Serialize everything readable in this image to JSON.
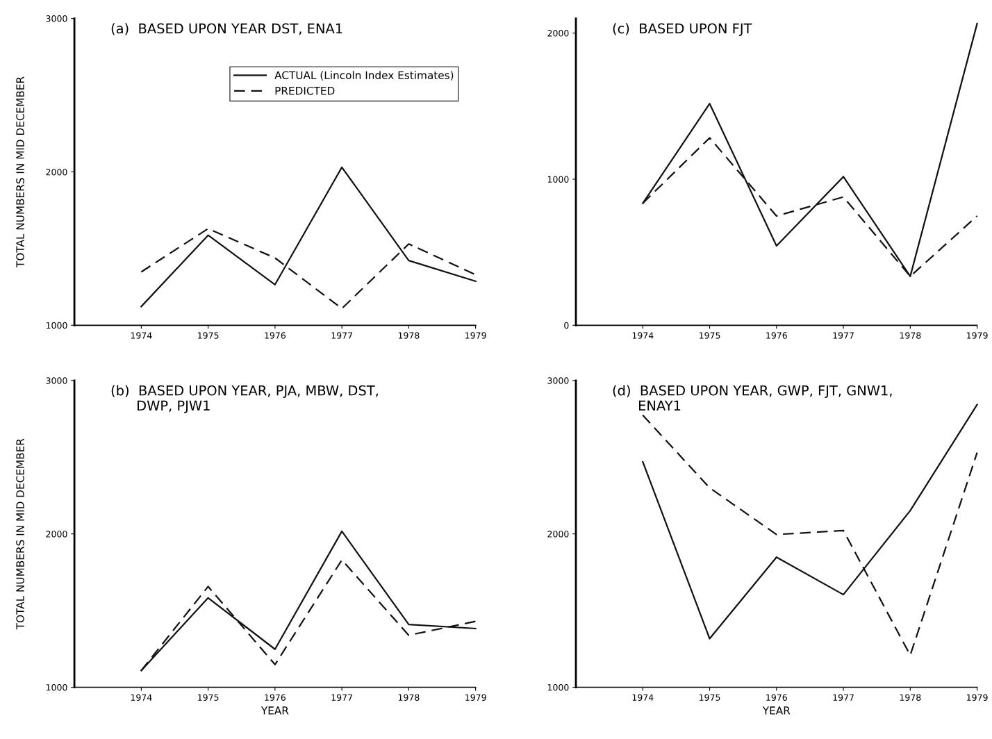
{
  "chart_data": [
    {
      "type": "line",
      "title": "(a)  BASED UPON YEAR DST, ENA1",
      "ylabel": "TOTAL NUMBERS IN MID DECEMBER",
      "x": [
        1974,
        1975,
        1976,
        1977,
        1978,
        1979
      ],
      "xlim": [
        1973,
        1979
      ],
      "ylim": [
        1000,
        3000
      ],
      "xticks": [
        1974,
        1975,
        1976,
        1977,
        1978,
        1979
      ],
      "yticks": [
        1000,
        2000,
        3000
      ],
      "grid": false,
      "legend": "top right",
      "series": [
        {
          "name": "ACTUAL (Lincoln Index Estimates)",
          "color": "#111111",
          "line_style": "solid",
          "values": [
            1122,
            1587,
            1265,
            2030,
            1422,
            1287
          ]
        },
        {
          "name": "PREDICTED",
          "color": "#111111",
          "line_style": "dashed",
          "values": [
            1348,
            1630,
            1439,
            1109,
            1530,
            1330
          ]
        }
      ]
    },
    {
      "type": "line",
      "title": "(c)  BASED UPON FJT",
      "x": [
        1974,
        1975,
        1976,
        1977,
        1978,
        1979
      ],
      "xlim": [
        1973,
        1979
      ],
      "ylim": [
        0,
        2100
      ],
      "xticks": [
        1974,
        1975,
        1976,
        1977,
        1978,
        1979
      ],
      "yticks": [
        0,
        1000,
        2000
      ],
      "grid": false,
      "series": [
        {
          "color": "#111111",
          "line_style": "solid",
          "values": [
            835,
            1517,
            543,
            1017,
            335,
            2065
          ]
        },
        {
          "color": "#111111",
          "line_style": "dashed",
          "values": [
            835,
            1283,
            748,
            878,
            335,
            748
          ]
        }
      ]
    },
    {
      "type": "line",
      "title": "(b)  BASED UPON YEAR, PJA, MBW, DST,\n      DWP, PJW1",
      "ylabel": "TOTAL NUMBERS IN MID DECEMBER",
      "xlabel": "YEAR",
      "x": [
        1974,
        1975,
        1976,
        1977,
        1978,
        1979
      ],
      "xlim": [
        1973,
        1979
      ],
      "ylim": [
        1000,
        3000
      ],
      "xticks": [
        1974,
        1975,
        1976,
        1977,
        1978,
        1979
      ],
      "yticks": [
        1000,
        2000,
        3000
      ],
      "grid": false,
      "series": [
        {
          "color": "#111111",
          "line_style": "solid",
          "values": [
            1109,
            1583,
            1248,
            2017,
            1409,
            1383
          ]
        },
        {
          "color": "#111111",
          "line_style": "dashed",
          "values": [
            1109,
            1657,
            1148,
            1830,
            1339,
            1430
          ]
        }
      ]
    },
    {
      "type": "line",
      "title": "(d)  BASED UPON YEAR, GWP, FJT, GNW1,\n      ENAY1",
      "xlabel": "YEAR",
      "x": [
        1974,
        1975,
        1976,
        1977,
        1978,
        1979
      ],
      "xlim": [
        1973,
        1979
      ],
      "ylim": [
        1000,
        3000
      ],
      "xticks": [
        1974,
        1975,
        1976,
        1977,
        1978,
        1979
      ],
      "yticks": [
        1000,
        2000,
        3000
      ],
      "grid": false,
      "series": [
        {
          "color": "#111111",
          "line_style": "solid",
          "values": [
            2470,
            1317,
            1848,
            1604,
            2152,
            2843
          ]
        },
        {
          "color": "#111111",
          "line_style": "dashed",
          "values": [
            2774,
            2300,
            1996,
            2022,
            1209,
            2530
          ]
        }
      ]
    }
  ]
}
